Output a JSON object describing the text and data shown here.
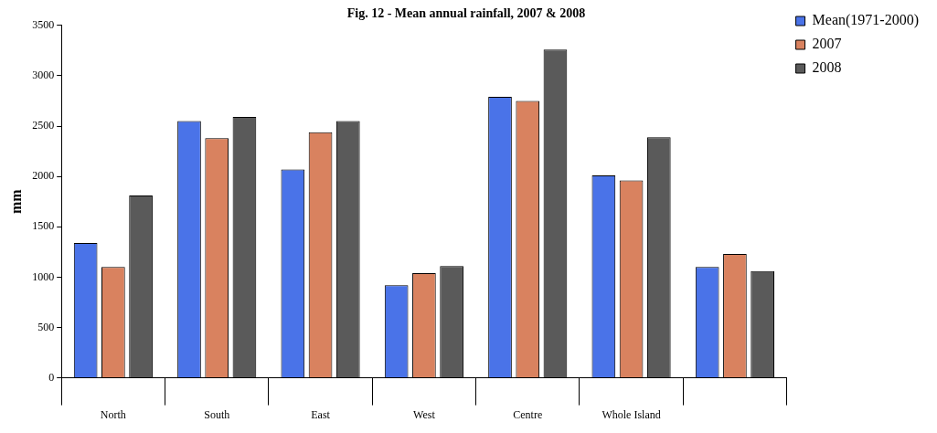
{
  "chart_data": {
    "type": "bar",
    "title": "Fig. 12 - Mean annual rainfall, 2007 & 2008",
    "ylabel": "mm",
    "categories": [
      "North",
      "South",
      "East",
      "West",
      "Centre",
      "Whole Island",
      null
    ],
    "series": [
      {
        "name": "Mean(1971-2000)",
        "color": "#4a73e8",
        "values": [
          1340,
          2550,
          2070,
          920,
          2790,
          2010,
          1100
        ]
      },
      {
        "name": "2007",
        "color": "#d9825f",
        "values": [
          1100,
          2380,
          2440,
          1040,
          2750,
          1960,
          1230
        ]
      },
      {
        "name": "2008",
        "color": "#5a5a5a",
        "values": [
          1810,
          2590,
          2550,
          1110,
          3260,
          2390,
          1060
        ]
      }
    ],
    "ylim": [
      0,
      3500
    ],
    "yticks": [
      0,
      500,
      1000,
      1500,
      2000,
      2500,
      3000,
      3500
    ],
    "grid": false,
    "legend": "top right"
  }
}
